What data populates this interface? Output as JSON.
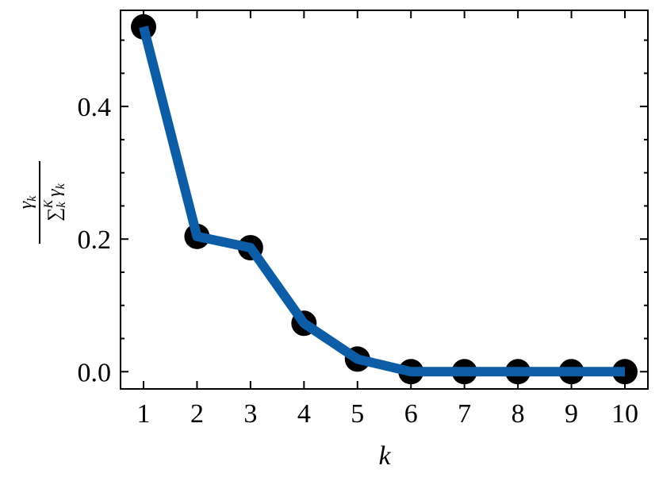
{
  "chart_data": {
    "type": "line",
    "xlabel": "k",
    "ylabel": {
      "numerator": {
        "base": "γ",
        "sub": "k"
      },
      "denominator": {
        "base": "∑",
        "sub": "k",
        "sup": "K",
        "tail": "γ",
        "tail_sub": "k"
      }
    },
    "x": [
      1,
      2,
      3,
      4,
      5,
      6,
      7,
      8,
      9,
      10
    ],
    "series": [
      {
        "color": "#0c5da5",
        "marker_color": "#000000",
        "values": [
          0.52,
          0.204,
          0.187,
          0.073,
          0.019,
          0,
          0,
          0,
          0,
          0
        ]
      }
    ],
    "xlim": [
      0.57,
      10.43
    ],
    "ylim": [
      -0.026,
      0.545
    ],
    "xticks": [
      1,
      2,
      3,
      4,
      5,
      6,
      7,
      8,
      9,
      10
    ],
    "yticks": [
      {
        "value": 0,
        "label": "0.0"
      },
      {
        "value": 0.2,
        "label": "0.2"
      },
      {
        "value": 0.4,
        "label": "0.4"
      }
    ],
    "yminor_ticks": [
      0.05,
      0.1,
      0.15,
      0.25,
      0.3,
      0.35,
      0.45,
      0.5
    ]
  }
}
